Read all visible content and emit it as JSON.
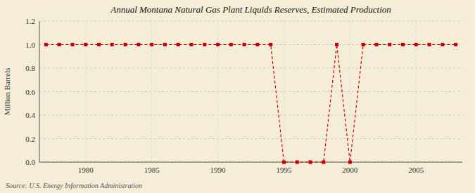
{
  "chart_data": {
    "type": "line",
    "title": "Annual Montana Natural Gas Plant Liquids Reserves, Estimated Production",
    "ylabel": "Million Barrels",
    "source": "Source: U.S. Energy Information Administration",
    "x": [
      1977,
      1978,
      1979,
      1980,
      1981,
      1982,
      1983,
      1984,
      1985,
      1986,
      1987,
      1988,
      1989,
      1990,
      1991,
      1992,
      1993,
      1994,
      1995,
      1996,
      1997,
      1998,
      1999,
      2000,
      2001,
      2002,
      2003,
      2004,
      2005,
      2006,
      2007,
      2008
    ],
    "values": [
      1.0,
      1.0,
      1.0,
      1.0,
      1.0,
      1.0,
      1.0,
      1.0,
      1.0,
      1.0,
      1.0,
      1.0,
      1.0,
      1.0,
      1.0,
      1.0,
      1.0,
      1.0,
      0.0,
      0.0,
      0.0,
      0.0,
      1.0,
      0.0,
      1.0,
      1.0,
      1.0,
      1.0,
      1.0,
      1.0,
      1.0,
      1.0
    ],
    "color": "#cc0000",
    "marker": "square",
    "line_style": "dashed",
    "xlim": [
      1976.5,
      2008.5
    ],
    "ylim": [
      0.0,
      1.2
    ],
    "xticks": [
      1980,
      1985,
      1990,
      1995,
      2000,
      2005
    ],
    "yticks": [
      {
        "value": 0.0,
        "label": "0.0"
      },
      0.2,
      0.4,
      0.6,
      0.8,
      {
        "value": 1.0,
        "label": "1.0"
      },
      1.2
    ],
    "grid": true
  }
}
